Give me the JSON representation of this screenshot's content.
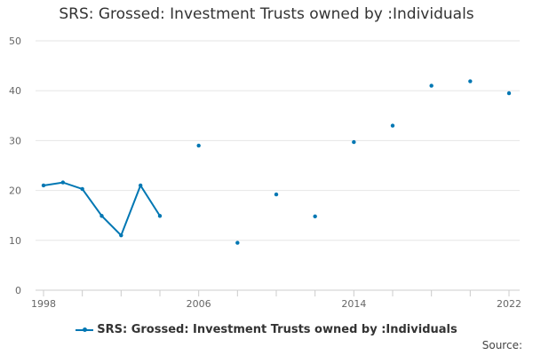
{
  "chart_data": {
    "type": "line",
    "title": "SRS: Grossed: Investment Trusts owned by :Individuals",
    "xlabel": "",
    "ylabel": "",
    "xlim": [
      1998,
      2022
    ],
    "ylim": [
      0,
      50
    ],
    "x_ticks": [
      1998,
      2006,
      2014,
      2022
    ],
    "y_ticks": [
      0,
      10,
      20,
      30,
      40,
      50
    ],
    "grid": true,
    "legend_position": "bottom",
    "series": [
      {
        "name": "SRS: Grossed: Investment Trusts owned by :Individuals",
        "color": "#0077b3",
        "points": [
          {
            "x": 1998,
            "y": 21.0
          },
          {
            "x": 1999,
            "y": 21.6
          },
          {
            "x": 2000,
            "y": 20.3
          },
          {
            "x": 2001,
            "y": 14.9
          },
          {
            "x": 2002,
            "y": 11.0
          },
          {
            "x": 2003,
            "y": 21.0
          },
          {
            "x": 2004,
            "y": 14.9
          },
          {
            "x": 2006,
            "y": 29.0
          },
          {
            "x": 2008,
            "y": 9.5
          },
          {
            "x": 2010,
            "y": 19.2
          },
          {
            "x": 2012,
            "y": 14.8
          },
          {
            "x": 2014,
            "y": 29.7
          },
          {
            "x": 2016,
            "y": 33.0
          },
          {
            "x": 2018,
            "y": 41.0
          },
          {
            "x": 2020,
            "y": 41.9
          },
          {
            "x": 2022,
            "y": 39.5
          }
        ]
      }
    ],
    "source_label": "Source:"
  }
}
